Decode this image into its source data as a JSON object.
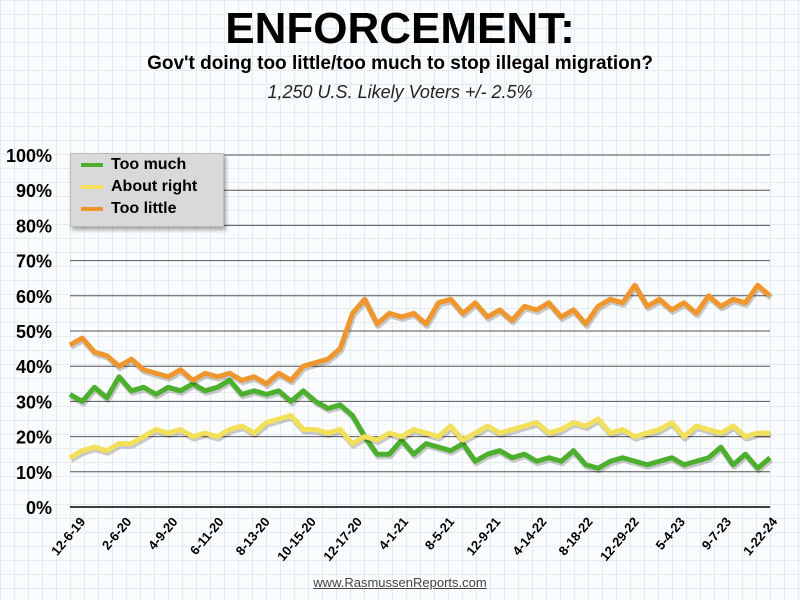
{
  "chart_data": {
    "type": "line",
    "title": "ENFORCEMENT:",
    "subtitle": "Gov't doing too little/too much to stop illegal migration?",
    "note": "1,250 U.S. Likely Voters +/- 2.5%",
    "source": "www.RasmussenReports.com",
    "x_tick_labels": [
      "12-6-19",
      "2-6-20",
      "4-9-20",
      "6-11-20",
      "8-13-20",
      "10-15-20",
      "12-17-20",
      "4-1-21",
      "8-5-21",
      "12-9-21",
      "4-14-22",
      "8-18-22",
      "12-29-22",
      "5-4-23",
      "9-7-23",
      "1-22-24"
    ],
    "y_tick_labels": [
      "0%",
      "10%",
      "20%",
      "30%",
      "40%",
      "50%",
      "60%",
      "70%",
      "80%",
      "90%",
      "100%"
    ],
    "ylim": [
      0,
      100
    ],
    "grid": true,
    "legend_position": "top-left",
    "series": [
      {
        "name": "Too much",
        "color": "#4caf2e",
        "values": [
          32,
          30,
          34,
          31,
          37,
          33,
          34,
          32,
          34,
          33,
          35,
          33,
          34,
          36,
          32,
          33,
          32,
          33,
          30,
          33,
          30,
          28,
          29,
          26,
          20,
          15,
          15,
          19,
          15,
          18,
          17,
          16,
          18,
          13,
          15,
          16,
          14,
          15,
          13,
          14,
          13,
          16,
          12,
          11,
          13,
          14,
          13,
          12,
          13,
          14,
          12,
          13,
          14,
          17,
          12,
          15,
          11,
          14
        ]
      },
      {
        "name": "About right",
        "color": "#f2e05a",
        "values": [
          14,
          16,
          17,
          16,
          18,
          18,
          20,
          22,
          21,
          22,
          20,
          21,
          20,
          22,
          23,
          21,
          24,
          25,
          26,
          22,
          22,
          21,
          22,
          18,
          20,
          19,
          21,
          20,
          22,
          21,
          20,
          23,
          19,
          21,
          23,
          21,
          22,
          23,
          24,
          21,
          22,
          24,
          23,
          25,
          21,
          22,
          20,
          21,
          22,
          24,
          20,
          23,
          22,
          21,
          23,
          20,
          21,
          21
        ]
      },
      {
        "name": "Too little",
        "color": "#f0962e",
        "values": [
          46,
          48,
          44,
          43,
          40,
          42,
          39,
          38,
          37,
          39,
          36,
          38,
          37,
          38,
          36,
          37,
          35,
          38,
          36,
          40,
          41,
          42,
          45,
          55,
          59,
          52,
          55,
          54,
          55,
          52,
          58,
          59,
          55,
          58,
          54,
          56,
          53,
          57,
          56,
          58,
          54,
          56,
          52,
          57,
          59,
          58,
          63,
          57,
          59,
          56,
          58,
          55,
          60,
          57,
          59,
          58,
          63,
          60
        ]
      }
    ]
  }
}
